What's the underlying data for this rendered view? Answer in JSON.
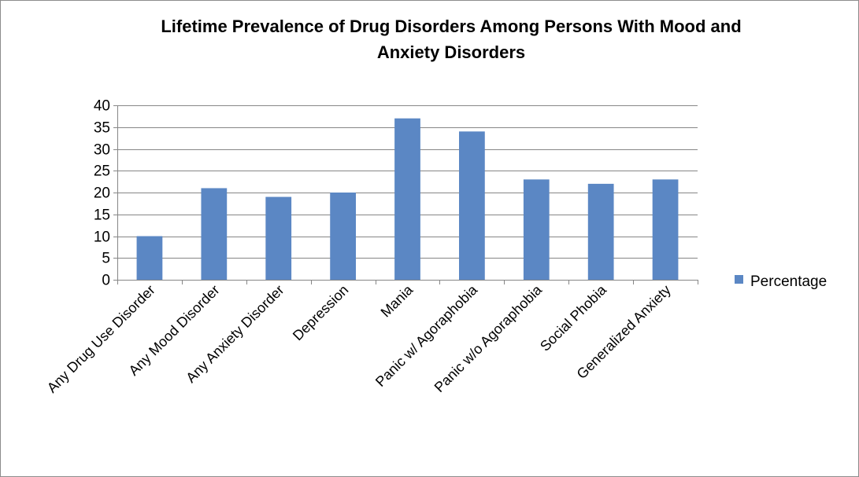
{
  "chart_data": {
    "type": "bar",
    "title_lines": [
      "Lifetime Prevalence of Drug Disorders Among Persons With Mood and",
      "Anxiety Disorders"
    ],
    "categories": [
      "Any Drug Use Disorder",
      "Any Mood Disorder",
      "Any Anxiety Disorder",
      "Depression",
      "Mania",
      "Panic  w/ Agoraphobia",
      "Panic w/o Agoraphobia",
      "Social Phobia",
      "Generalized Anxiety"
    ],
    "series": [
      {
        "name": "Percentage",
        "values": [
          10,
          21,
          19,
          20,
          37,
          34,
          23,
          22,
          23
        ]
      }
    ],
    "xlabel": "",
    "ylabel": "",
    "ylim": [
      0,
      40
    ],
    "yticks": [
      0,
      5,
      10,
      15,
      20,
      25,
      30,
      35,
      40
    ],
    "grid": true,
    "legend_position": "right",
    "colors": {
      "bar": "#5b87c4",
      "grid": "#868686",
      "axis": "#868686"
    }
  }
}
